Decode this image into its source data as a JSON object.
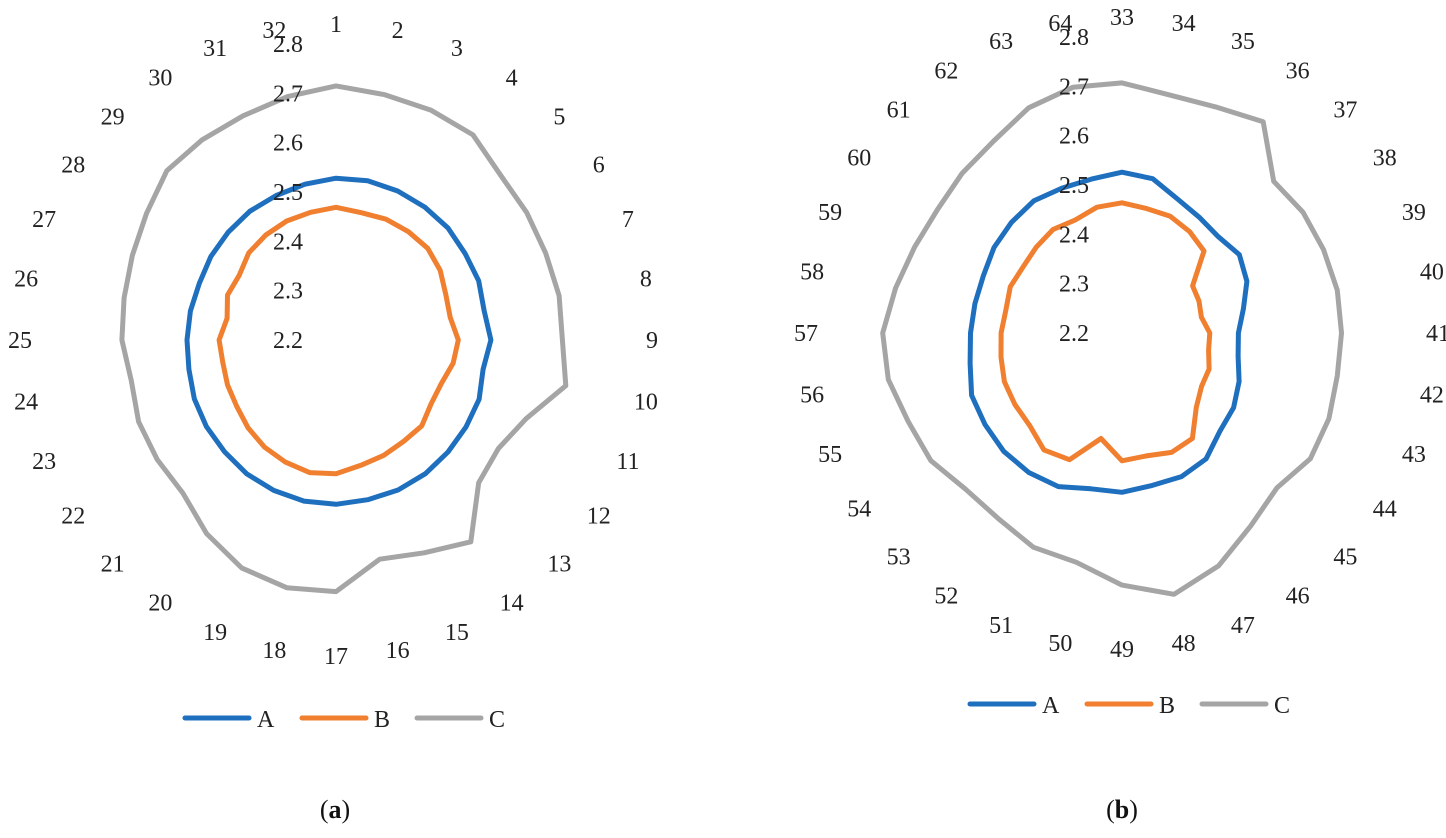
{
  "chart_data": [
    {
      "type": "radar",
      "caption_letter": "a",
      "categories": [
        "1",
        "2",
        "3",
        "4",
        "5",
        "6",
        "7",
        "8",
        "9",
        "10",
        "11",
        "12",
        "13",
        "14",
        "15",
        "16",
        "17",
        "18",
        "19",
        "20",
        "21",
        "22",
        "23",
        "24",
        "25",
        "26",
        "27",
        "28",
        "29",
        "30",
        "31",
        "32"
      ],
      "radial_ticks": [
        "2.2",
        "2.3",
        "2.4",
        "2.5",
        "2.6",
        "2.7",
        "2.8"
      ],
      "rlim": [
        2.2,
        2.8
      ],
      "legend": [
        "A",
        "B",
        "C"
      ],
      "series": [
        {
          "name": "A",
          "color": "#1f6fbf",
          "values": [
            2.528,
            2.529,
            2.527,
            2.524,
            2.521,
            2.515,
            2.513,
            2.506,
            2.514,
            2.504,
            2.514,
            2.517,
            2.521,
            2.526,
            2.529,
            2.53,
            2.533,
            2.533,
            2.53,
            2.526,
            2.52,
            2.516,
            2.511,
            2.504,
            2.502,
            2.501,
            2.5,
            2.505,
            2.509,
            2.514,
            2.517,
            2.522
          ]
        },
        {
          "name": "B",
          "color": "#f07f2f",
          "values": [
            2.469,
            2.463,
            2.465,
            2.464,
            2.463,
            2.454,
            2.441,
            2.436,
            2.448,
            2.442,
            2.431,
            2.432,
            2.446,
            2.447,
            2.453,
            2.459,
            2.471,
            2.474,
            2.468,
            2.461,
            2.452,
            2.442,
            2.438,
            2.434,
            2.437,
            2.425,
            2.438,
            2.436,
            2.45,
            2.456,
            2.461,
            2.464
          ]
        },
        {
          "name": "C",
          "color": "#a5a5a5",
          "values": [
            2.715,
            2.707,
            2.704,
            2.7,
            2.672,
            2.665,
            2.66,
            2.661,
            2.659,
            2.675,
            2.617,
            2.596,
            2.609,
            2.692,
            2.667,
            2.653,
            2.71,
            2.712,
            2.7,
            2.672,
            2.639,
            2.636,
            2.633,
            2.623,
            2.634,
            2.638,
            2.647,
            2.662,
            2.685,
            2.688,
            2.692,
            2.703
          ]
        }
      ]
    },
    {
      "type": "radar",
      "caption_letter": "b",
      "categories": [
        "33",
        "34",
        "35",
        "36",
        "37",
        "38",
        "39",
        "40",
        "41",
        "42",
        "43",
        "44",
        "45",
        "46",
        "47",
        "48",
        "49",
        "50",
        "51",
        "52",
        "53",
        "54",
        "55",
        "56",
        "57",
        "58",
        "59",
        "60",
        "61",
        "62",
        "63",
        "64"
      ],
      "radial_ticks": [
        "2.2",
        "2.3",
        "2.4",
        "2.5",
        "2.6",
        "2.7",
        "2.8"
      ],
      "rlim": [
        2.2,
        2.8
      ],
      "legend": [
        "A",
        "B",
        "C"
      ],
      "series": [
        {
          "name": "A",
          "color": "#1f6fbf",
          "values": [
            2.526,
            2.519,
            2.494,
            2.482,
            2.476,
            2.486,
            2.474,
            2.451,
            2.436,
            2.44,
            2.457,
            2.472,
            2.481,
            2.507,
            2.515,
            2.515,
            2.523,
            2.522,
            2.537,
            2.54,
            2.539,
            2.534,
            2.53,
            2.514,
            2.507,
            2.504,
            2.504,
            2.512,
            2.517,
            2.522,
            2.518,
            2.518
          ]
        },
        {
          "name": "B",
          "color": "#f07f2f",
          "values": [
            2.464,
            2.457,
            2.456,
            2.447,
            2.435,
            2.372,
            2.369,
            2.364,
            2.378,
            2.379,
            2.391,
            2.394,
            2.413,
            2.457,
            2.462,
            2.454,
            2.459,
            2.418,
            2.478,
            2.485,
            2.465,
            2.461,
            2.458,
            2.45,
            2.445,
            2.44,
            2.445,
            2.441,
            2.446,
            2.452,
            2.448,
            2.46
          ]
        },
        {
          "name": "C",
          "color": "#a5a5a5",
          "values": [
            2.707,
            2.692,
            2.696,
            2.715,
            2.635,
            2.641,
            2.642,
            2.645,
            2.645,
            2.645,
            2.654,
            2.659,
            2.644,
            2.67,
            2.711,
            2.74,
            2.711,
            2.674,
            2.67,
            2.652,
            2.648,
            2.666,
            2.669,
            2.683,
            2.685,
            2.668,
            2.655,
            2.65,
            2.658,
            2.668,
            2.694,
            2.708
          ]
        }
      ]
    }
  ]
}
